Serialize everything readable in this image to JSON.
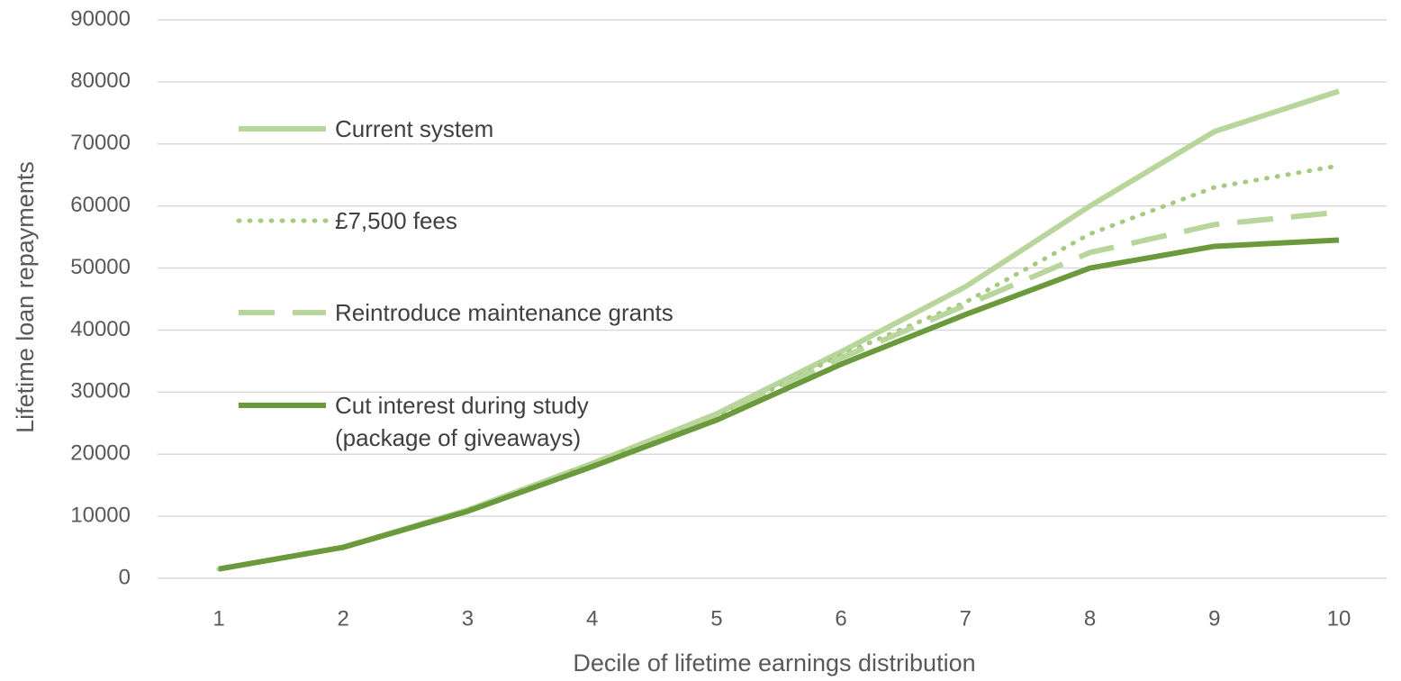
{
  "chart_data": {
    "type": "line",
    "x_label": "Decile of lifetime earnings distribution",
    "y_label": "Lifetime loan repayments",
    "categories": [
      "1",
      "2",
      "3",
      "4",
      "5",
      "6",
      "7",
      "8",
      "9",
      "10"
    ],
    "series": [
      {
        "name": "Current system",
        "color": "#b8d69c",
        "style": "solid",
        "values": [
          1500,
          5000,
          11000,
          18500,
          26500,
          36500,
          47000,
          60000,
          72000,
          78500
        ]
      },
      {
        "name": "£7,500 fees",
        "color": "#a6ca80",
        "style": "dotted",
        "values": [
          1500,
          5000,
          11000,
          18500,
          26000,
          36000,
          44500,
          55500,
          63000,
          66500
        ]
      },
      {
        "name": "Reintroduce maintenance grants",
        "color": "#b8d69c",
        "style": "dashed",
        "values": [
          1500,
          5000,
          11000,
          18500,
          26000,
          35500,
          44000,
          52500,
          57000,
          59000
        ]
      },
      {
        "name": "Cut interest during study\n(package of giveaways)",
        "color": "#6b9a3c",
        "style": "solid",
        "values": [
          1500,
          5000,
          10800,
          18000,
          25500,
          34500,
          42500,
          50000,
          53500,
          54500
        ]
      }
    ],
    "ylim": [
      0,
      90000
    ],
    "yticks": [
      0,
      10000,
      20000,
      30000,
      40000,
      50000,
      60000,
      70000,
      80000,
      90000
    ],
    "grid": true,
    "legend": "left"
  }
}
